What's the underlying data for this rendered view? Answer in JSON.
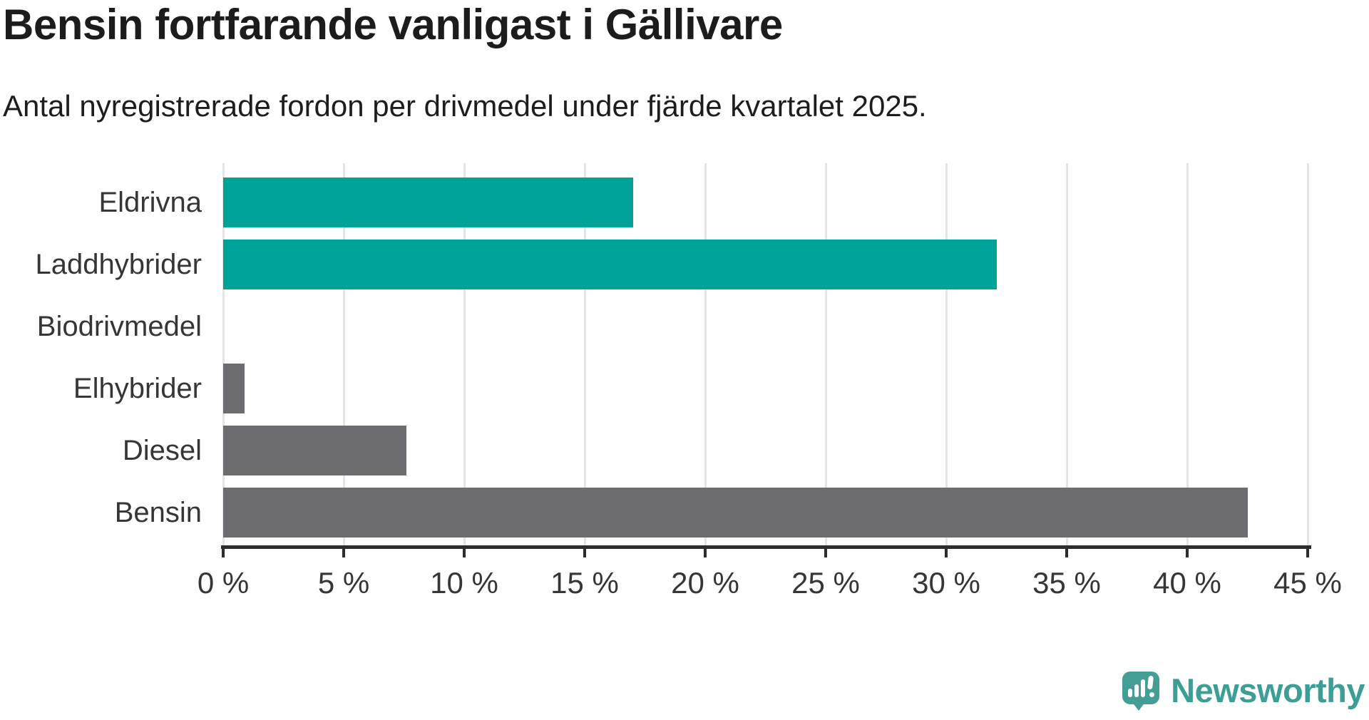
{
  "header": {
    "title": "Bensin fortfarande vanligast i Gällivare",
    "subtitle": "Antal nyregistrerade fordon per drivmedel under fjärde kvartalet 2025."
  },
  "chart_data": {
    "type": "bar",
    "orientation": "horizontal",
    "title": "Bensin fortfarande vanligast i Gällivare",
    "subtitle": "Antal nyregistrerade fordon per drivmedel under fjärde kvartalet 2025.",
    "categories": [
      "Eldrivna",
      "Laddhybrider",
      "Biodrivmedel",
      "Elhybrider",
      "Diesel",
      "Bensin"
    ],
    "values": [
      17.0,
      32.1,
      0,
      0.9,
      7.6,
      42.5
    ],
    "unit": "%",
    "bar_colors": [
      "#00a399",
      "#00a399",
      "#6c6c71",
      "#6c6c71",
      "#6c6c71",
      "#6c6c71"
    ],
    "accent_color": "#00a399",
    "neutral_color": "#6c6c71",
    "xlim": [
      0,
      45
    ],
    "x_ticks": [
      0,
      5,
      10,
      15,
      20,
      25,
      30,
      35,
      40,
      45
    ],
    "x_tick_format": "{v} %",
    "grid": "vertical",
    "gridline_color": "#e4e4e4",
    "axis_color": "#2d2d2d",
    "legend": "none"
  },
  "footer": {
    "brand": "Newsworthy",
    "brand_color": "#3d9e96"
  }
}
